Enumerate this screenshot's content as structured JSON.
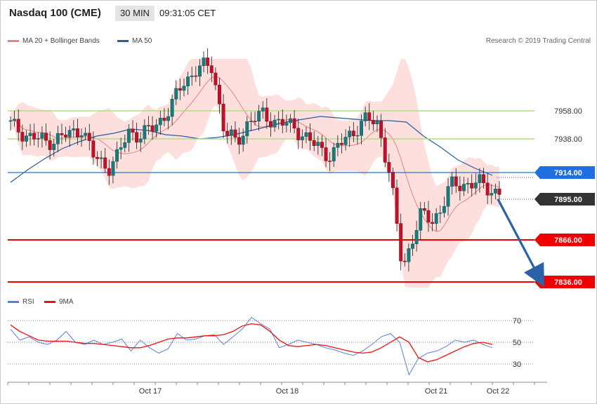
{
  "header": {
    "instrument": "Nasdaq 100 (CME)",
    "timeframe": "30 MIN",
    "time": "09:31:05 CET"
  },
  "legend": {
    "ma20": {
      "label": "MA 20 + Bollinger Bands",
      "color": "#f08080"
    },
    "ma50": {
      "label": "MA 50",
      "color": "#2b5c9e"
    },
    "rsi": {
      "label": "RSI",
      "color": "#5b7fe0"
    },
    "ma9": {
      "label": "9MA",
      "color": "#ee1111"
    }
  },
  "credit": "Research © 2019 Trading Central",
  "chart_data": [
    {
      "type": "candlestick",
      "x_labels": [
        "Oct 17",
        "Oct 18",
        "Oct 21",
        "Oct 22"
      ],
      "ylim": [
        7830,
        7995
      ],
      "levels": [
        {
          "value": 7958.0,
          "label": "7958.00",
          "kind": "resistance",
          "color": "#b5d88a"
        },
        {
          "value": 7938.0,
          "label": "7938.00",
          "kind": "resistance",
          "color": "#b5d88a"
        },
        {
          "value": 7914.0,
          "label": "7914.00",
          "kind": "ma50",
          "color": "#2b6fd6"
        },
        {
          "value": 7895.0,
          "label": "7895.00",
          "kind": "last price",
          "color": "#333333"
        },
        {
          "value": 7866.0,
          "label": "7866.00",
          "kind": "support",
          "color": "#ee0000"
        },
        {
          "value": 7836.0,
          "label": "7836.00",
          "kind": "support",
          "color": "#ee0000"
        }
      ],
      "ma50": [
        7907,
        7916,
        7924,
        7931,
        7936,
        7940,
        7942,
        7945,
        7944,
        7941,
        7940,
        7938,
        7939,
        7941,
        7944,
        7947,
        7950,
        7952,
        7954,
        7953,
        7952,
        7951,
        7951,
        7950,
        7940,
        7932,
        7923,
        7917,
        7912
      ],
      "forecast": {
        "from": 7895,
        "to": 7836
      }
    },
    {
      "type": "line",
      "name": "RSI",
      "ylim": [
        15,
        85
      ],
      "levels": [
        70,
        50,
        30
      ],
      "series": [
        {
          "name": "RSI",
          "values": [
            62,
            52,
            55,
            50,
            48,
            52,
            60,
            50,
            48,
            52,
            48,
            50,
            53,
            42,
            52,
            45,
            40,
            44,
            58,
            52,
            53,
            56,
            57,
            48,
            55,
            62,
            73,
            67,
            62,
            45,
            48,
            52,
            50,
            48,
            45,
            43,
            40,
            38,
            42,
            48,
            55,
            58,
            50,
            20,
            35,
            40,
            42,
            46,
            52,
            50,
            52,
            48,
            45
          ]
        },
        {
          "name": "9MA",
          "values": [
            66,
            60,
            56,
            52,
            51,
            51,
            51,
            50,
            49,
            49,
            48,
            47,
            46,
            45,
            45,
            47,
            50,
            53,
            54,
            54,
            55,
            56,
            56,
            57,
            60,
            65,
            67,
            66,
            60,
            52,
            47,
            46,
            47,
            48,
            47,
            45,
            43,
            41,
            40,
            41,
            45,
            50,
            55,
            50,
            36,
            32,
            34,
            38,
            42,
            46,
            49,
            50,
            48
          ]
        }
      ]
    }
  ]
}
